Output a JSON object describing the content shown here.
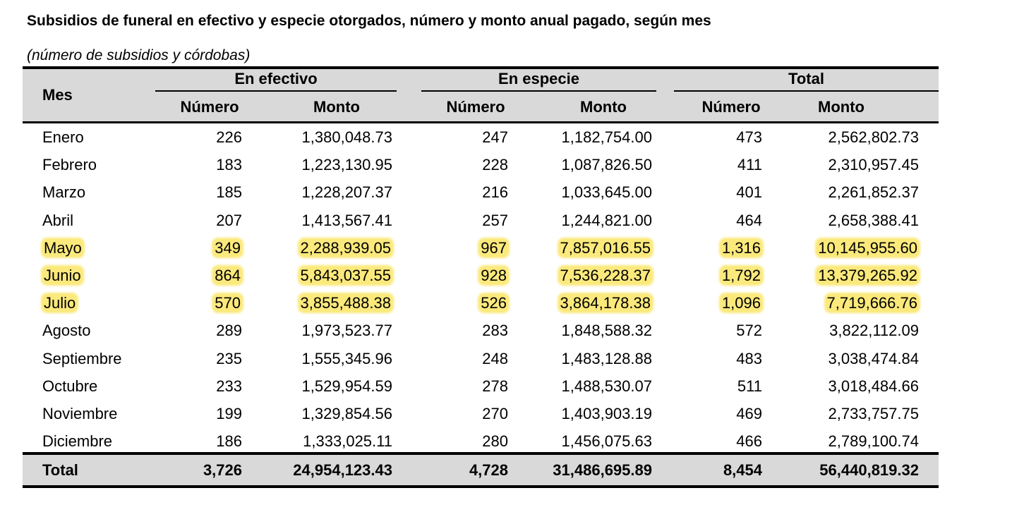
{
  "title": "Subsidios de funeral en efectivo y especie otorgados, número y monto anual pagado, según mes",
  "subtitle": "(número de subsidios y córdobas)",
  "highlight_color": "#fbe97c",
  "header": {
    "mes": "Mes",
    "groups": [
      "En efectivo",
      "En especie",
      "Total"
    ],
    "numero": "Número",
    "monto": "Monto"
  },
  "rows": [
    {
      "mes": "Enero",
      "ef_num": "226",
      "ef_monto": "1,380,048.73",
      "es_num": "247",
      "es_monto": "1,182,754.00",
      "t_num": "473",
      "t_monto": "2,562,802.73",
      "highlight": false
    },
    {
      "mes": "Febrero",
      "ef_num": "183",
      "ef_monto": "1,223,130.95",
      "es_num": "228",
      "es_monto": "1,087,826.50",
      "t_num": "411",
      "t_monto": "2,310,957.45",
      "highlight": false
    },
    {
      "mes": "Marzo",
      "ef_num": "185",
      "ef_monto": "1,228,207.37",
      "es_num": "216",
      "es_monto": "1,033,645.00",
      "t_num": "401",
      "t_monto": "2,261,852.37",
      "highlight": false
    },
    {
      "mes": "Abril",
      "ef_num": "207",
      "ef_monto": "1,413,567.41",
      "es_num": "257",
      "es_monto": "1,244,821.00",
      "t_num": "464",
      "t_monto": "2,658,388.41",
      "highlight": false
    },
    {
      "mes": "Mayo",
      "ef_num": "349",
      "ef_monto": "2,288,939.05",
      "es_num": "967",
      "es_monto": "7,857,016.55",
      "t_num": "1,316",
      "t_monto": "10,145,955.60",
      "highlight": true
    },
    {
      "mes": "Junio",
      "ef_num": "864",
      "ef_monto": "5,843,037.55",
      "es_num": "928",
      "es_monto": "7,536,228.37",
      "t_num": "1,792",
      "t_monto": "13,379,265.92",
      "highlight": true
    },
    {
      "mes": "Julio",
      "ef_num": "570",
      "ef_monto": "3,855,488.38",
      "es_num": "526",
      "es_monto": "3,864,178.38",
      "t_num": "1,096",
      "t_monto": "7,719,666.76",
      "highlight": true
    },
    {
      "mes": "Agosto",
      "ef_num": "289",
      "ef_monto": "1,973,523.77",
      "es_num": "283",
      "es_monto": "1,848,588.32",
      "t_num": "572",
      "t_monto": "3,822,112.09",
      "highlight": false
    },
    {
      "mes": "Septiembre",
      "ef_num": "235",
      "ef_monto": "1,555,345.96",
      "es_num": "248",
      "es_monto": "1,483,128.88",
      "t_num": "483",
      "t_monto": "3,038,474.84",
      "highlight": false
    },
    {
      "mes": "Octubre",
      "ef_num": "233",
      "ef_monto": "1,529,954.59",
      "es_num": "278",
      "es_monto": "1,488,530.07",
      "t_num": "511",
      "t_monto": "3,018,484.66",
      "highlight": false
    },
    {
      "mes": "Noviembre",
      "ef_num": "199",
      "ef_monto": "1,329,854.56",
      "es_num": "270",
      "es_monto": "1,403,903.19",
      "t_num": "469",
      "t_monto": "2,733,757.75",
      "highlight": false
    },
    {
      "mes": "Diciembre",
      "ef_num": "186",
      "ef_monto": "1,333,025.11",
      "es_num": "280",
      "es_monto": "1,456,075.63",
      "t_num": "466",
      "t_monto": "2,789,100.74",
      "highlight": false
    }
  ],
  "total": {
    "mes": "Total",
    "ef_num": "3,726",
    "ef_monto": "24,954,123.43",
    "es_num": "4,728",
    "es_monto": "31,486,695.89",
    "t_num": "8,454",
    "t_monto": "56,440,819.32"
  }
}
